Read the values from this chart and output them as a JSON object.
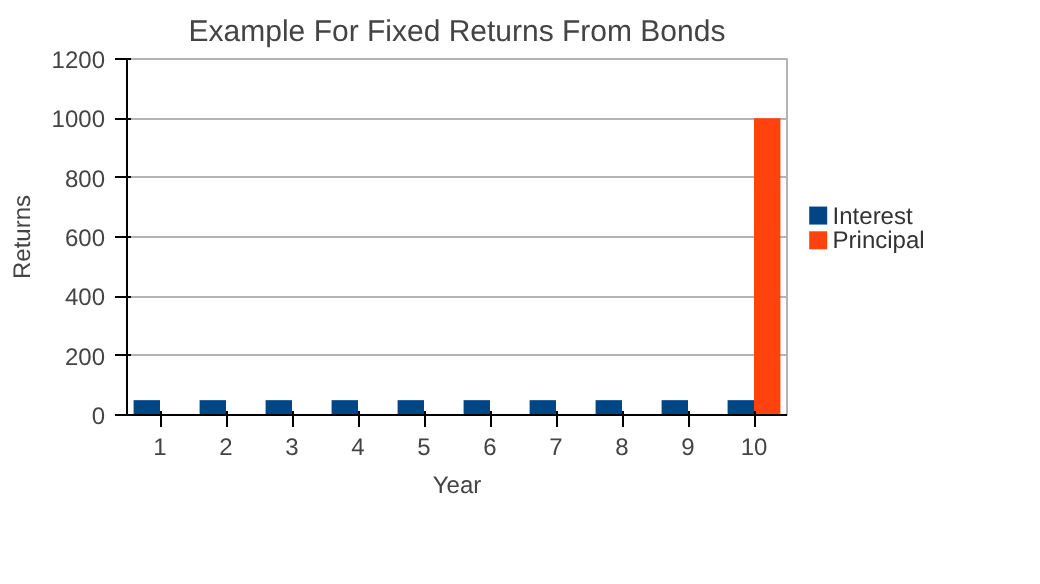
{
  "chart_data": {
    "type": "bar",
    "title": "Example For Fixed Returns From Bonds",
    "xlabel": "Year",
    "ylabel": "Returns",
    "categories": [
      "1",
      "2",
      "3",
      "4",
      "5",
      "6",
      "7",
      "8",
      "9",
      "10"
    ],
    "series": [
      {
        "name": "Interest",
        "color": "#004586",
        "values": [
          50,
          50,
          50,
          50,
          50,
          50,
          50,
          50,
          50,
          50
        ]
      },
      {
        "name": "Principal",
        "color": "#ff420e",
        "values": [
          0,
          0,
          0,
          0,
          0,
          0,
          0,
          0,
          0,
          1000
        ]
      }
    ],
    "ylim": [
      0,
      1200
    ],
    "yticks": [
      0,
      200,
      400,
      600,
      800,
      1000,
      1200
    ],
    "grid": "y",
    "legend": "right"
  }
}
